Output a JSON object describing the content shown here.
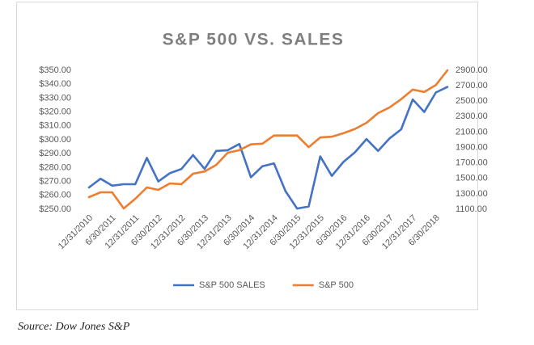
{
  "chart_data": {
    "type": "line",
    "title": "S&P 500 VS. SALES",
    "categories": [
      "12/31/2010",
      null,
      "6/30/2011",
      null,
      "12/31/2011",
      null,
      "6/30/2012",
      null,
      "12/31/2012",
      null,
      "6/30/2013",
      null,
      "12/31/2013",
      null,
      "6/30/2014",
      null,
      "12/31/2014",
      null,
      "6/30/2015",
      null,
      "12/31/2015",
      null,
      "6/30/2016",
      null,
      "12/31/2016",
      null,
      "6/30/2017",
      null,
      "12/31/2017",
      null,
      "6/30/2018",
      null
    ],
    "series": [
      {
        "name": "S&P 500 SALES",
        "color": "#4472c4",
        "values": [
          265.7,
          272,
          267,
          268,
          268,
          287,
          270,
          276,
          279,
          289,
          279,
          292,
          292.5,
          297,
          273,
          281,
          283,
          263,
          250.5,
          252,
          288,
          274,
          284,
          291,
          300.5,
          292,
          301,
          307.5,
          329,
          320,
          334,
          338
        ]
      },
      {
        "name": "S&P 500",
        "color": "#ed7d31",
        "axis": "y2",
        "values": [
          1257,
          1320,
          1320,
          1110,
          1236,
          1383,
          1351,
          1435,
          1425,
          1560,
          1590,
          1675,
          1833,
          1865,
          1940,
          1950,
          2055,
          2055,
          2055,
          1905,
          2030,
          2040,
          2085,
          2140,
          2220,
          2345,
          2420,
          2525,
          2650,
          2620,
          2710,
          2900
        ]
      }
    ],
    "ylim": [
      250,
      350
    ],
    "yticks": [
      {
        "value": 250,
        "label": "$250.00"
      },
      {
        "value": 260,
        "label": "$260.00"
      },
      {
        "value": 270,
        "label": "$270.00"
      },
      {
        "value": 280,
        "label": "$280.00"
      },
      {
        "value": 290,
        "label": "$290.00"
      },
      {
        "value": 300,
        "label": "$300.00"
      },
      {
        "value": 310,
        "label": "$310.00"
      },
      {
        "value": 320,
        "label": "$320.00"
      },
      {
        "value": 330,
        "label": "$330.00"
      },
      {
        "value": 340,
        "label": "$340.00"
      },
      {
        "value": 350,
        "label": "$350.00"
      }
    ],
    "y2lim": [
      1100,
      2900
    ],
    "y2ticks": [
      {
        "value": 1100,
        "label": "1100.00"
      },
      {
        "value": 1300,
        "label": "1300.00"
      },
      {
        "value": 1500,
        "label": "1500.00"
      },
      {
        "value": 1700,
        "label": "1700.00"
      },
      {
        "value": 1900,
        "label": "1900.00"
      },
      {
        "value": 2100,
        "label": "2100.00"
      },
      {
        "value": 2300,
        "label": "2300.00"
      },
      {
        "value": 2500,
        "label": "2500.00"
      },
      {
        "value": 2700,
        "label": "2700.00"
      },
      {
        "value": 2900,
        "label": "2900.00"
      }
    ],
    "legend": "bottom"
  },
  "source": "Source: Dow Jones S&P"
}
